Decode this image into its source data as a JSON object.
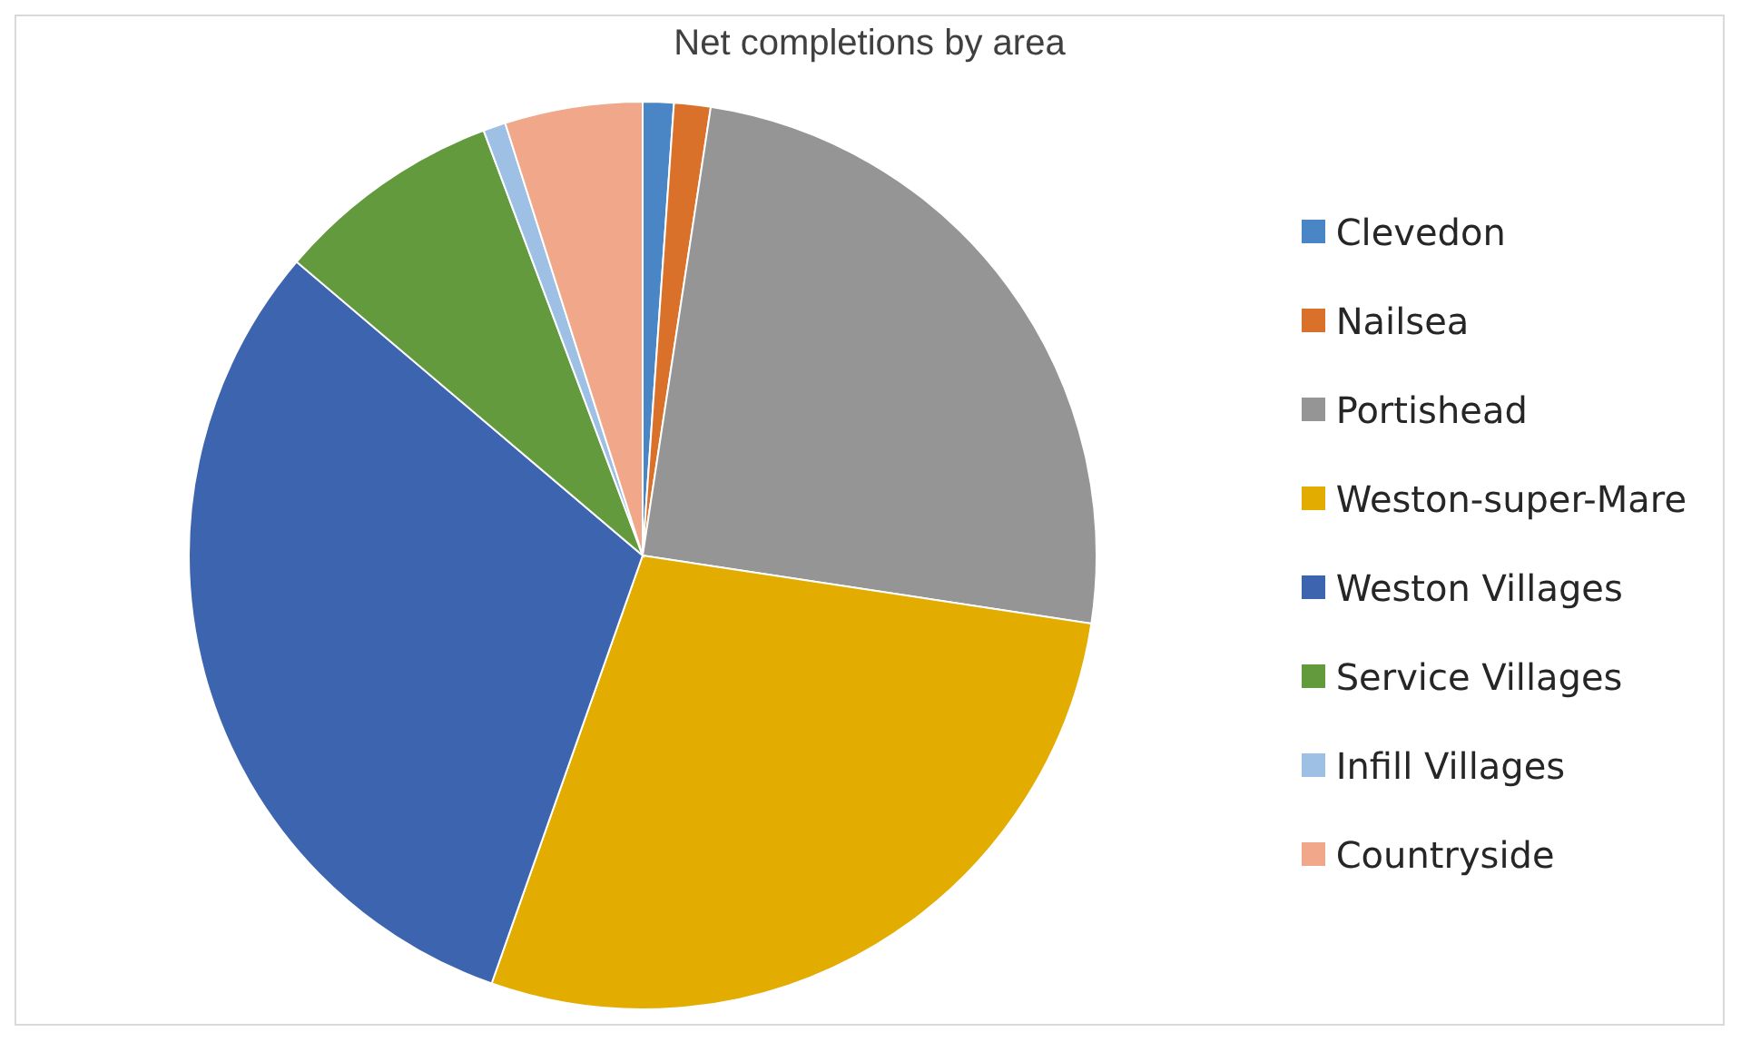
{
  "chart_data": {
    "type": "pie",
    "title": "Net completions by area",
    "categories": [
      "Clevedon",
      "Nailsea",
      "Portishead",
      "Weston-super-Mare",
      "Weston Villages",
      "Service Villages",
      "Infill Villages",
      "Countryside"
    ],
    "values": [
      1.1,
      1.3,
      25,
      28,
      30.8,
      8.1,
      0.8,
      4.9
    ],
    "colors": [
      "#4a86c5",
      "#d9712b",
      "#959595",
      "#e2ac00",
      "#3d64ae",
      "#639a3d",
      "#9dc0e4",
      "#f1a88a"
    ],
    "legend": "right"
  }
}
